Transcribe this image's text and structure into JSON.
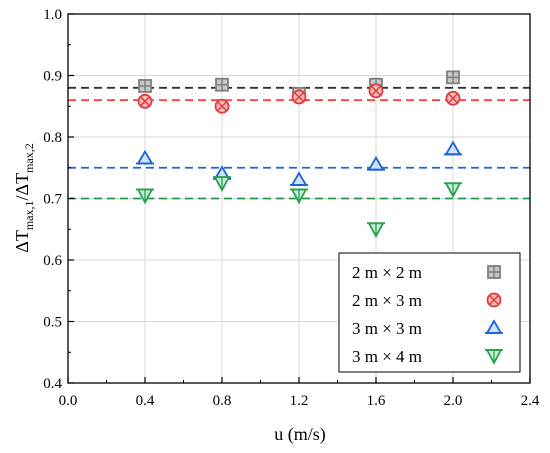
{
  "chart_data": {
    "type": "scatter",
    "title": "",
    "xlabel": "u (m/s)",
    "ylabel": "ΔT_max,1/ΔT_max,2",
    "xlim": [
      0.0,
      2.4
    ],
    "ylim": [
      0.4,
      1.0
    ],
    "xticks": [
      "0.0",
      "0.4",
      "0.8",
      "1.2",
      "1.6",
      "2.0",
      "2.4"
    ],
    "yticks": [
      "0.4",
      "0.5",
      "0.6",
      "0.7",
      "0.8",
      "0.9",
      "1.0"
    ],
    "grid": true,
    "legend_position": "bottom-right",
    "series": [
      {
        "name": "2 m × 2 m",
        "marker": "square-plus",
        "color": "#7f7f7f",
        "x": [
          0.4,
          0.8,
          1.2,
          1.6,
          2.0
        ],
        "y": [
          0.883,
          0.885,
          0.87,
          0.885,
          0.897
        ],
        "reference_line": 0.88,
        "line_color": "#333333"
      },
      {
        "name": "2 m × 3 m",
        "marker": "circle-x",
        "color": "#e03c3c",
        "x": [
          0.4,
          0.8,
          1.2,
          1.6,
          2.0
        ],
        "y": [
          0.858,
          0.85,
          0.865,
          0.875,
          0.863
        ],
        "reference_line": 0.86,
        "line_color": "#ff3b3b"
      },
      {
        "name": "3 m × 3 m",
        "marker": "triangle-up",
        "color": "#1a64d6",
        "x": [
          0.4,
          0.8,
          1.2,
          1.6,
          2.0
        ],
        "y": [
          0.765,
          0.74,
          0.73,
          0.755,
          0.78
        ],
        "reference_line": 0.75,
        "line_color": "#1a64d6"
      },
      {
        "name": "3 m × 4 m",
        "marker": "triangle-down",
        "color": "#2aa050",
        "x": [
          0.4,
          0.8,
          1.2,
          1.6,
          2.0
        ],
        "y": [
          0.705,
          0.725,
          0.705,
          0.65,
          0.715
        ],
        "reference_line": 0.7,
        "line_color": "#1e9c3c"
      }
    ]
  }
}
